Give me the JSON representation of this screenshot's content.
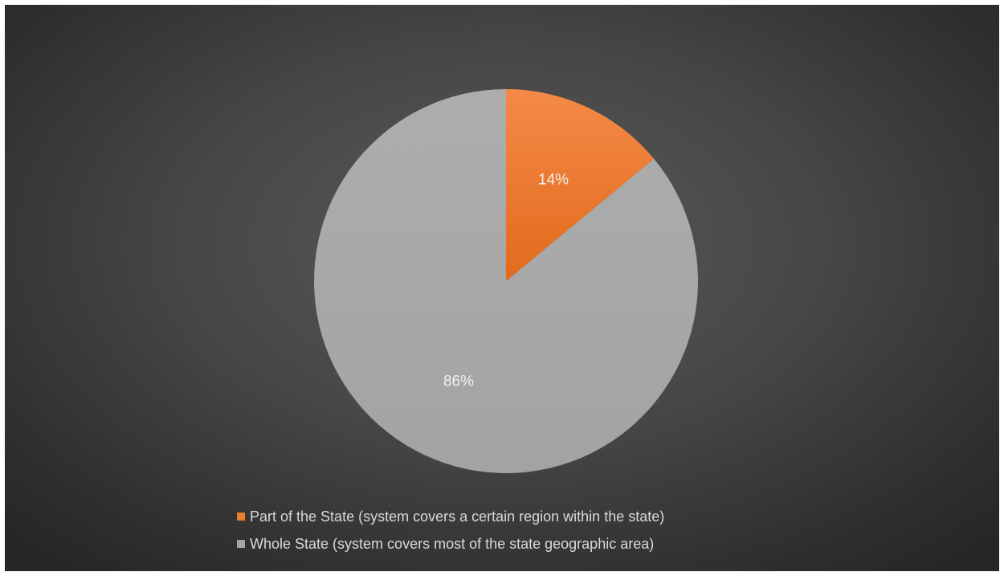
{
  "chart_data": {
    "type": "pie",
    "title": "",
    "categories": [
      "Part of the State (system covers a certain region within the state)",
      "Whole State (system covers most of the state geographic area)"
    ],
    "values": [
      14,
      86
    ],
    "data_labels": [
      "14%",
      "86%"
    ],
    "colors": [
      "#ed7d31",
      "#a5a5a5"
    ],
    "start_angle": "12 o'clock, clockwise",
    "legend_position": "bottom"
  }
}
